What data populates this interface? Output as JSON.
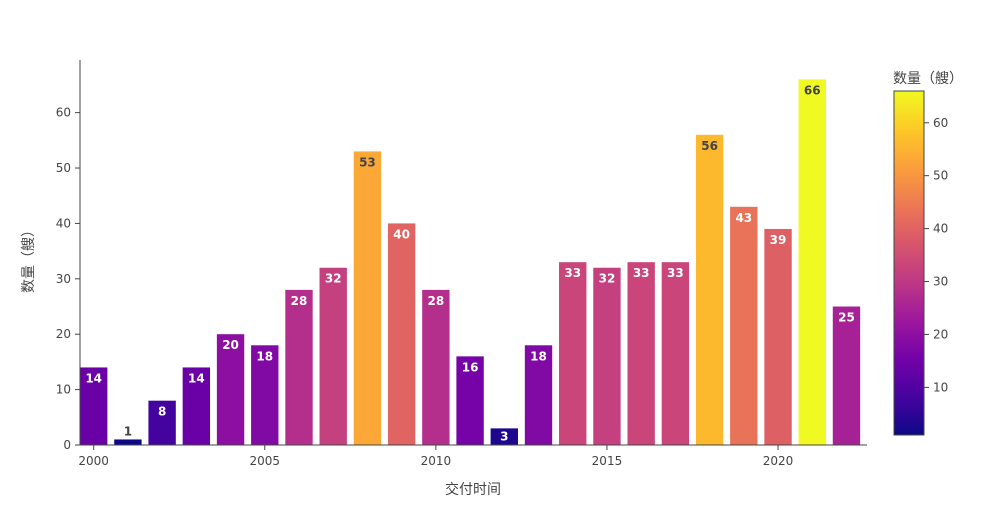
{
  "chart_data": {
    "type": "bar",
    "xlabel": "交付时间",
    "ylabel": "数量（艘）",
    "colorbar_title": "数量（艘）",
    "x": [
      2000,
      2001,
      2002,
      2003,
      2004,
      2005,
      2006,
      2007,
      2008,
      2009,
      2010,
      2011,
      2012,
      2013,
      2014,
      2015,
      2016,
      2017,
      2018,
      2019,
      2020,
      2021,
      2022
    ],
    "values": [
      14,
      1,
      8,
      14,
      20,
      18,
      28,
      32,
      53,
      40,
      28,
      16,
      3,
      18,
      33,
      32,
      33,
      33,
      56,
      43,
      39,
      66,
      25
    ],
    "x_ticks": [
      "2000",
      "2005",
      "2010",
      "2015",
      "2020"
    ],
    "y_ticks": [
      "0",
      "10",
      "20",
      "30",
      "40",
      "50",
      "60"
    ],
    "colorbar_ticks": [
      "10",
      "20",
      "30",
      "40",
      "50",
      "60"
    ],
    "xlim": [
      1999.6,
      2022.6
    ],
    "ylim": [
      0,
      69.5
    ],
    "color_range": [
      1,
      66
    ],
    "colorscale": "plasma",
    "grid": false,
    "legend": "colorbar-right"
  }
}
